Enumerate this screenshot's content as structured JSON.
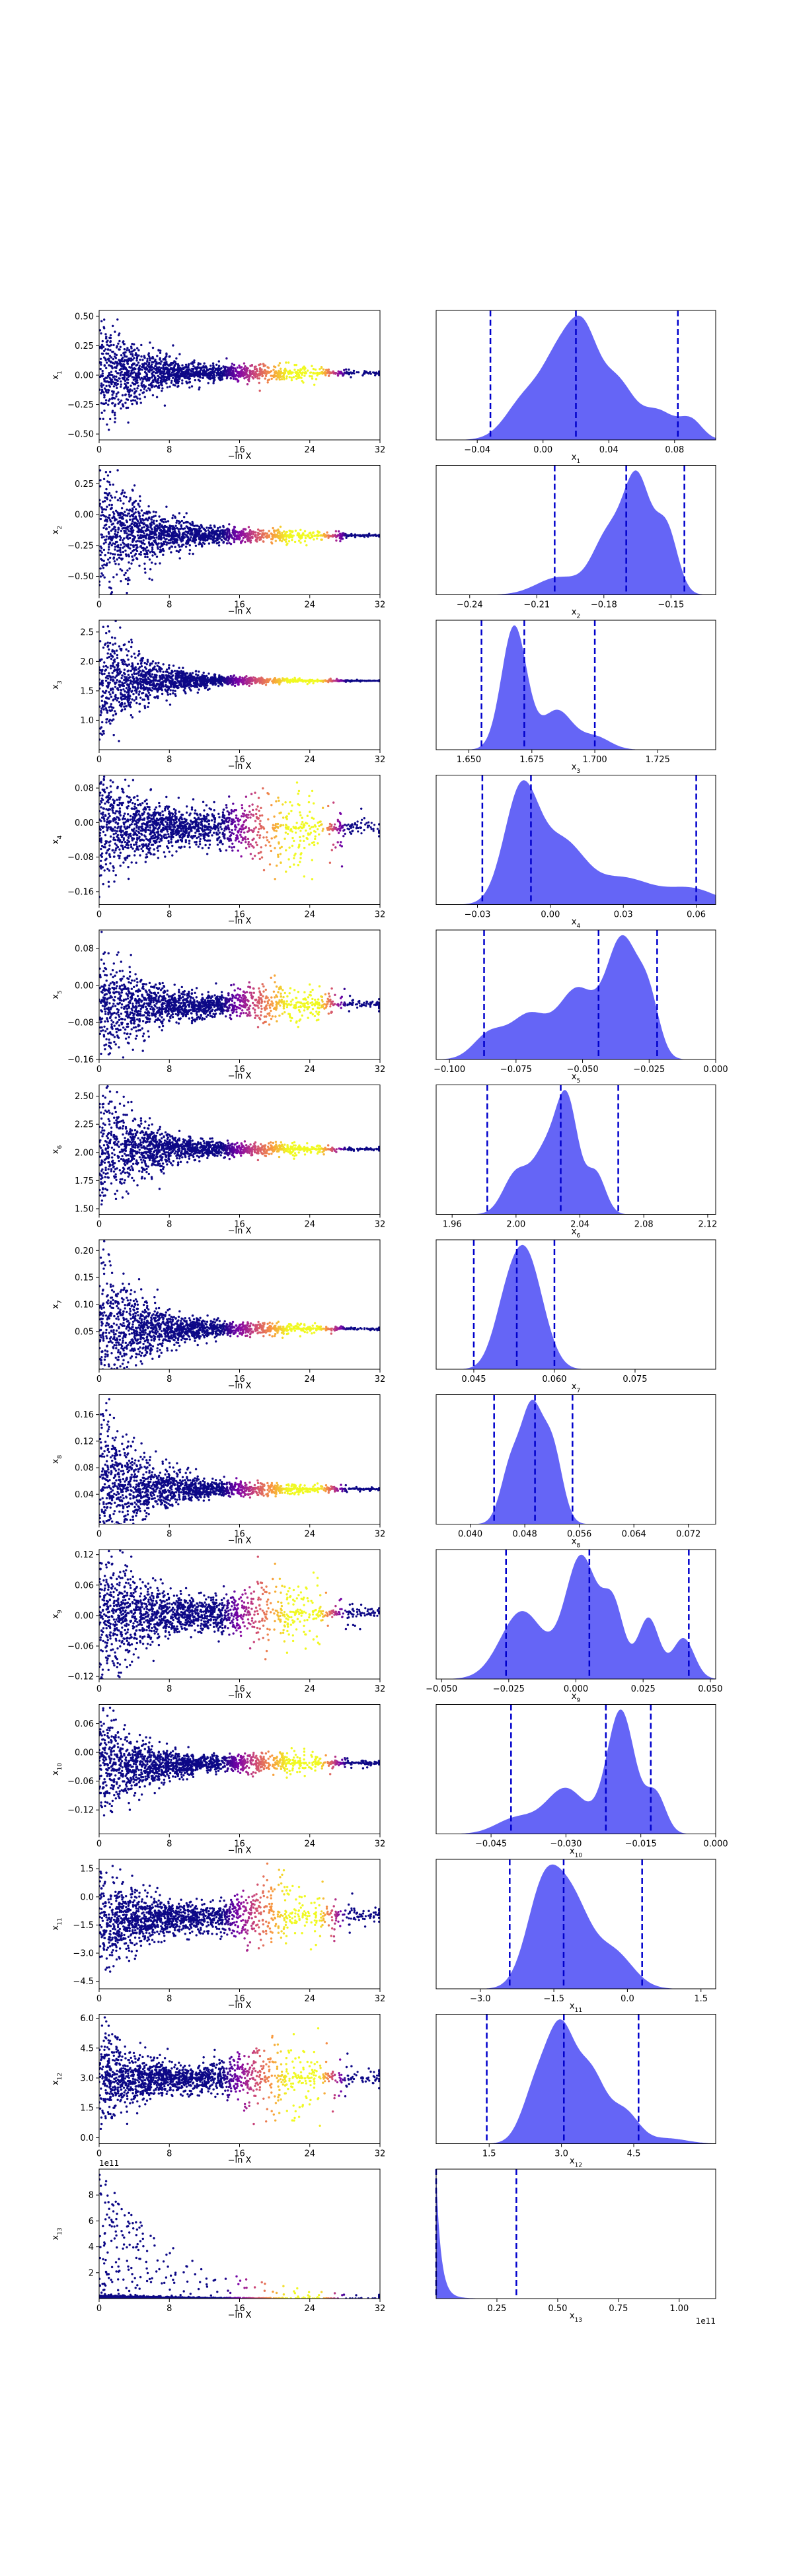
{
  "figure": {
    "trace_xlabel": "−ln X",
    "trace_xticks": [
      0,
      8,
      16,
      24,
      32
    ],
    "trace_xlim": [
      0,
      32
    ],
    "colormap": "plasma",
    "density_fill": "#5454f5",
    "quantile_line_color": "#0000cc"
  },
  "chart_data": [
    {
      "type": "scatter",
      "label": "x_1",
      "sym": "x",
      "sub": "1",
      "trace": {
        "ylim": [
          -0.55,
          0.55
        ],
        "yticks": [
          -0.5,
          -0.25,
          0.0,
          0.25,
          0.5
        ],
        "ytick_labels": [
          "−0.50",
          "−0.25",
          "0.00",
          "0.25",
          "0.50"
        ],
        "center": 0.02,
        "spread0": 0.25,
        "final": 0.02,
        "tail": 0.03
      },
      "density": {
        "type": "area",
        "xlim": [
          -0.065,
          0.105
        ],
        "xticks": [
          -0.04,
          0.0,
          0.04,
          0.08
        ],
        "xtick_labels": [
          "−0.04",
          "0.00",
          "0.04",
          "0.08"
        ],
        "quantiles": [
          -0.032,
          0.02,
          0.082
        ],
        "peaks": [
          {
            "mu": -0.01,
            "s": 0.012,
            "a": 0.45
          },
          {
            "mu": 0.01,
            "s": 0.01,
            "a": 0.75
          },
          {
            "mu": 0.025,
            "s": 0.009,
            "a": 0.95
          },
          {
            "mu": 0.045,
            "s": 0.01,
            "a": 0.6
          },
          {
            "mu": 0.07,
            "s": 0.01,
            "a": 0.3
          },
          {
            "mu": 0.09,
            "s": 0.007,
            "a": 0.2
          }
        ]
      }
    },
    {
      "type": "scatter",
      "label": "x_2",
      "sym": "x",
      "sub": "2",
      "trace": {
        "ylim": [
          -0.65,
          0.4
        ],
        "yticks": [
          -0.5,
          -0.25,
          0.0,
          0.25
        ],
        "ytick_labels": [
          "−0.50",
          "−0.25",
          "0.00",
          "0.25"
        ],
        "center": -0.15,
        "spread0": 0.3,
        "final": -0.17,
        "tail": 0.02
      },
      "density": {
        "type": "area",
        "xlim": [
          -0.255,
          -0.13
        ],
        "xticks": [
          -0.24,
          -0.21,
          -0.18,
          -0.15
        ],
        "xtick_labels": [
          "−0.24",
          "−0.21",
          "−0.18",
          "−0.15"
        ],
        "quantiles": [
          -0.202,
          -0.17,
          -0.144
        ],
        "peaks": [
          {
            "mu": -0.2,
            "s": 0.01,
            "a": 0.15
          },
          {
            "mu": -0.178,
            "s": 0.007,
            "a": 0.5
          },
          {
            "mu": -0.165,
            "s": 0.006,
            "a": 0.95
          },
          {
            "mu": -0.152,
            "s": 0.005,
            "a": 0.55
          }
        ]
      }
    },
    {
      "type": "scatter",
      "label": "x_3",
      "sym": "x",
      "sub": "3",
      "trace": {
        "ylim": [
          0.5,
          2.7
        ],
        "yticks": [
          1.0,
          1.5,
          2.0,
          2.5
        ],
        "ytick_labels": [
          "1.0",
          "1.5",
          "2.0",
          "2.5"
        ],
        "center": 1.68,
        "spread0": 0.5,
        "final": 1.672,
        "tail": 0.01
      },
      "density": {
        "type": "area",
        "xlim": [
          1.637,
          1.748
        ],
        "xticks": [
          1.65,
          1.675,
          1.7,
          1.725
        ],
        "xtick_labels": [
          "1.650",
          "1.675",
          "1.700",
          "1.725"
        ],
        "quantiles": [
          1.655,
          1.672,
          1.7
        ],
        "peaks": [
          {
            "mu": 1.668,
            "s": 0.005,
            "a": 0.95
          },
          {
            "mu": 1.685,
            "s": 0.006,
            "a": 0.3
          },
          {
            "mu": 1.7,
            "s": 0.006,
            "a": 0.1
          }
        ]
      }
    },
    {
      "type": "scatter",
      "label": "x_4",
      "sym": "x",
      "sub": "4",
      "trace": {
        "ylim": [
          -0.19,
          0.11
        ],
        "yticks": [
          -0.16,
          -0.08,
          0.0,
          0.08
        ],
        "ytick_labels": [
          "−0.16",
          "−0.08",
          "0.00",
          "0.08"
        ],
        "center": -0.01,
        "spread0": 0.07,
        "final": -0.01,
        "tail": 0.045
      },
      "density": {
        "type": "area",
        "xlim": [
          -0.047,
          0.068
        ],
        "xticks": [
          -0.03,
          0.0,
          0.03,
          0.06
        ],
        "xtick_labels": [
          "−0.03",
          "0.00",
          "0.03",
          "0.06"
        ],
        "quantiles": [
          -0.028,
          -0.008,
          0.06
        ],
        "peaks": [
          {
            "mu": -0.012,
            "s": 0.007,
            "a": 0.95
          },
          {
            "mu": 0.005,
            "s": 0.009,
            "a": 0.5
          },
          {
            "mu": 0.03,
            "s": 0.012,
            "a": 0.22
          },
          {
            "mu": 0.058,
            "s": 0.01,
            "a": 0.13
          }
        ]
      }
    },
    {
      "type": "scatter",
      "label": "x_5",
      "sym": "x",
      "sub": "5",
      "trace": {
        "ylim": [
          -0.16,
          0.12
        ],
        "yticks": [
          -0.16,
          -0.08,
          0.0,
          0.08
        ],
        "ytick_labels": [
          "−0.16",
          "−0.08",
          "0.00",
          "0.08"
        ],
        "center": -0.045,
        "spread0": 0.07,
        "final": -0.04,
        "tail": 0.02
      },
      "density": {
        "type": "area",
        "xlim": [
          -0.105,
          0.0
        ],
        "xticks": [
          -0.1,
          -0.075,
          -0.05,
          -0.025,
          0.0
        ],
        "xtick_labels": [
          "−0.100",
          "−0.075",
          "−0.050",
          "−0.025",
          "0.000"
        ],
        "quantiles": [
          -0.087,
          -0.044,
          -0.022
        ],
        "peaks": [
          {
            "mu": -0.085,
            "s": 0.006,
            "a": 0.2
          },
          {
            "mu": -0.07,
            "s": 0.007,
            "a": 0.35
          },
          {
            "mu": -0.052,
            "s": 0.007,
            "a": 0.55
          },
          {
            "mu": -0.035,
            "s": 0.006,
            "a": 0.95
          },
          {
            "mu": -0.025,
            "s": 0.004,
            "a": 0.4
          }
        ]
      }
    },
    {
      "type": "scatter",
      "label": "x_6",
      "sym": "x",
      "sub": "6",
      "trace": {
        "ylim": [
          1.45,
          2.6
        ],
        "yticks": [
          1.5,
          1.75,
          2.0,
          2.25,
          2.5
        ],
        "ytick_labels": [
          "1.50",
          "1.75",
          "2.00",
          "2.25",
          "2.50"
        ],
        "center": 2.03,
        "spread0": 0.3,
        "final": 2.03,
        "tail": 0.02
      },
      "density": {
        "type": "area",
        "xlim": [
          1.95,
          2.125
        ],
        "xticks": [
          1.96,
          2.0,
          2.04,
          2.08,
          2.12
        ],
        "xtick_labels": [
          "1.96",
          "2.00",
          "2.04",
          "2.08",
          "2.12"
        ],
        "quantiles": [
          1.982,
          2.028,
          2.064
        ],
        "peaks": [
          {
            "mu": 2.0,
            "s": 0.008,
            "a": 0.35
          },
          {
            "mu": 2.018,
            "s": 0.008,
            "a": 0.5
          },
          {
            "mu": 2.032,
            "s": 0.007,
            "a": 0.95
          },
          {
            "mu": 2.05,
            "s": 0.006,
            "a": 0.35
          }
        ]
      }
    },
    {
      "type": "scatter",
      "label": "x_7",
      "sym": "x",
      "sub": "7",
      "trace": {
        "ylim": [
          -0.02,
          0.22
        ],
        "yticks": [
          0.05,
          0.1,
          0.15,
          0.2
        ],
        "ytick_labels": [
          "0.05",
          "0.10",
          "0.15",
          "0.20"
        ],
        "center": 0.055,
        "spread0": 0.07,
        "final": 0.055,
        "tail": 0.004
      },
      "density": {
        "type": "area",
        "xlim": [
          0.038,
          0.09
        ],
        "xticks": [
          0.045,
          0.06,
          0.075
        ],
        "xtick_labels": [
          "0.045",
          "0.060",
          "0.075"
        ],
        "quantiles": [
          0.045,
          0.053,
          0.06
        ],
        "peaks": [
          {
            "mu": 0.051,
            "s": 0.0025,
            "a": 0.6
          },
          {
            "mu": 0.0545,
            "s": 0.0025,
            "a": 0.9
          },
          {
            "mu": 0.0575,
            "s": 0.0025,
            "a": 0.35
          }
        ]
      }
    },
    {
      "type": "scatter",
      "label": "x_8",
      "sym": "x",
      "sub": "8",
      "trace": {
        "ylim": [
          -0.005,
          0.19
        ],
        "yticks": [
          0.04,
          0.08,
          0.12,
          0.16
        ],
        "ytick_labels": [
          "0.04",
          "0.08",
          "0.12",
          "0.16"
        ],
        "center": 0.05,
        "spread0": 0.06,
        "final": 0.048,
        "tail": 0.003
      },
      "density": {
        "type": "area",
        "xlim": [
          0.035,
          0.076
        ],
        "xticks": [
          0.04,
          0.048,
          0.056,
          0.064,
          0.072
        ],
        "xtick_labels": [
          "0.040",
          "0.048",
          "0.056",
          "0.064",
          "0.072"
        ],
        "quantiles": [
          0.0435,
          0.0495,
          0.055
        ],
        "peaks": [
          {
            "mu": 0.046,
            "s": 0.0015,
            "a": 0.5
          },
          {
            "mu": 0.049,
            "s": 0.0015,
            "a": 0.9
          },
          {
            "mu": 0.052,
            "s": 0.0015,
            "a": 0.65
          }
        ]
      }
    },
    {
      "type": "scatter",
      "label": "x_9",
      "sym": "x",
      "sub": "9",
      "trace": {
        "ylim": [
          -0.125,
          0.13
        ],
        "yticks": [
          -0.12,
          -0.06,
          0.0,
          0.06,
          0.12
        ],
        "ytick_labels": [
          "−0.12",
          "−0.06",
          "0.00",
          "0.06",
          "0.12"
        ],
        "center": 0.0,
        "spread0": 0.07,
        "final": 0.005,
        "tail": 0.03
      },
      "density": {
        "type": "area",
        "xlim": [
          -0.052,
          0.052
        ],
        "xticks": [
          -0.05,
          -0.025,
          0.0,
          0.025,
          0.05
        ],
        "xtick_labels": [
          "−0.050",
          "−0.025",
          "0.000",
          "0.025",
          "0.050"
        ],
        "quantiles": [
          -0.026,
          0.005,
          0.042
        ],
        "peaks": [
          {
            "mu": -0.02,
            "s": 0.008,
            "a": 0.5
          },
          {
            "mu": 0.002,
            "s": 0.006,
            "a": 0.9
          },
          {
            "mu": 0.014,
            "s": 0.004,
            "a": 0.5
          },
          {
            "mu": 0.027,
            "s": 0.004,
            "a": 0.45
          },
          {
            "mu": 0.04,
            "s": 0.004,
            "a": 0.3
          }
        ]
      }
    },
    {
      "type": "scatter",
      "label": "x_10",
      "sym": "x",
      "sub": "10",
      "trace": {
        "ylim": [
          -0.17,
          0.1
        ],
        "yticks": [
          -0.12,
          -0.06,
          0.0,
          0.06
        ],
        "ytick_labels": [
          "−0.12",
          "−0.06",
          "0.00",
          "0.06"
        ],
        "center": -0.03,
        "spread0": 0.06,
        "final": -0.022,
        "tail": 0.01
      },
      "density": {
        "type": "area",
        "xlim": [
          -0.056,
          0.0
        ],
        "xticks": [
          -0.045,
          -0.03,
          -0.015,
          0.0
        ],
        "xtick_labels": [
          "−0.045",
          "−0.030",
          "−0.015",
          "0.000"
        ],
        "quantiles": [
          -0.041,
          -0.022,
          -0.013
        ],
        "peaks": [
          {
            "mu": -0.04,
            "s": 0.004,
            "a": 0.12
          },
          {
            "mu": -0.03,
            "s": 0.004,
            "a": 0.35
          },
          {
            "mu": -0.019,
            "s": 0.0028,
            "a": 0.95
          },
          {
            "mu": -0.012,
            "s": 0.002,
            "a": 0.3
          }
        ]
      }
    },
    {
      "type": "scatter",
      "label": "x_11",
      "sym": "x",
      "sub": "11",
      "trace": {
        "ylim": [
          -4.9,
          2.0
        ],
        "yticks": [
          -4.5,
          -3.0,
          -1.5,
          0.0,
          1.5
        ],
        "ytick_labels": [
          "−4.5",
          "−3.0",
          "−1.5",
          "0.0",
          "1.5"
        ],
        "center": -1.3,
        "spread0": 1.3,
        "final": -1.0,
        "tail": 0.9
      },
      "density": {
        "type": "area",
        "xlim": [
          -3.9,
          1.8
        ],
        "xticks": [
          -3.0,
          -1.5,
          0.0,
          1.5
        ],
        "xtick_labels": [
          "−3.0",
          "−1.5",
          "0.0",
          "1.5"
        ],
        "quantiles": [
          -2.4,
          -1.3,
          0.3
        ],
        "peaks": [
          {
            "mu": -1.7,
            "s": 0.35,
            "a": 0.95
          },
          {
            "mu": -1.1,
            "s": 0.35,
            "a": 0.7
          },
          {
            "mu": -0.3,
            "s": 0.4,
            "a": 0.35
          }
        ]
      }
    },
    {
      "type": "scatter",
      "label": "x_12",
      "sym": "x",
      "sub": "12",
      "trace": {
        "ylim": [
          -0.3,
          6.2
        ],
        "yticks": [
          0.0,
          1.5,
          3.0,
          4.5,
          6.0
        ],
        "ytick_labels": [
          "0.0",
          "1.5",
          "3.0",
          "4.5",
          "6.0"
        ],
        "center": 3.0,
        "spread0": 1.1,
        "final": 3.0,
        "tail": 0.9
      },
      "density": {
        "type": "area",
        "xlim": [
          0.4,
          6.2
        ],
        "xticks": [
          1.5,
          3.0,
          4.5
        ],
        "xtick_labels": [
          "1.5",
          "3.0",
          "4.5"
        ],
        "quantiles": [
          1.45,
          3.05,
          4.6
        ],
        "peaks": [
          {
            "mu": 2.5,
            "s": 0.3,
            "a": 0.55
          },
          {
            "mu": 3.0,
            "s": 0.28,
            "a": 0.95
          },
          {
            "mu": 3.6,
            "s": 0.3,
            "a": 0.65
          },
          {
            "mu": 4.3,
            "s": 0.3,
            "a": 0.3
          },
          {
            "mu": 5.2,
            "s": 0.4,
            "a": 0.05
          }
        ]
      }
    },
    {
      "type": "scatter",
      "label": "x_13",
      "sym": "x",
      "sub": "13",
      "trace": {
        "ylim": [
          0.0,
          10.0
        ],
        "yticks": [
          2,
          4,
          6,
          8
        ],
        "ytick_labels": [
          "2",
          "4",
          "6",
          "8"
        ],
        "offset_label": "1e11",
        "mode": "heavy"
      },
      "density": {
        "type": "area",
        "xlim": [
          0.0,
          1.15
        ],
        "xticks": [
          0.25,
          0.5,
          0.75,
          1.0
        ],
        "xtick_labels": [
          "0.25",
          "0.50",
          "0.75",
          "1.00"
        ],
        "offset_label": "1e11",
        "quantiles": [
          0.0,
          0.33
        ],
        "mode": "spike"
      }
    }
  ]
}
